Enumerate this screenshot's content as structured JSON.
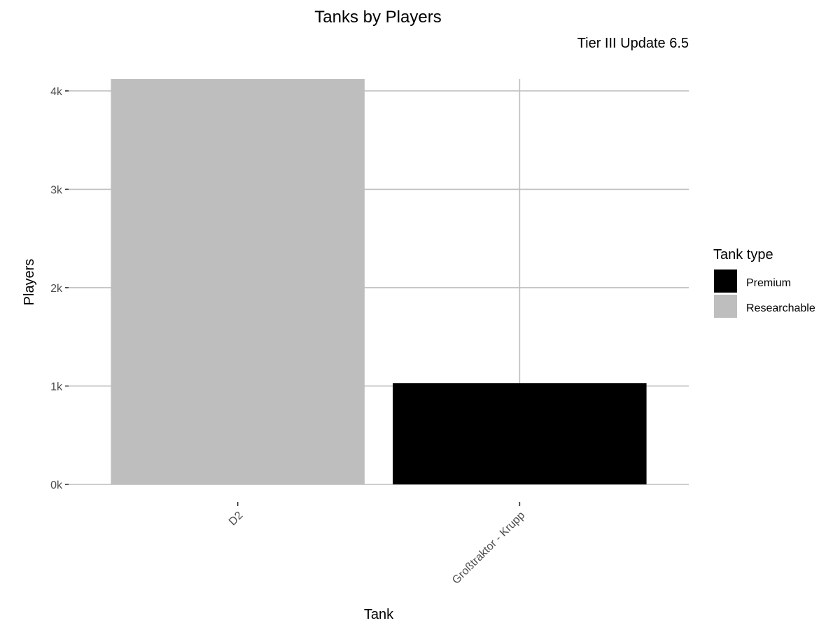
{
  "chart_data": {
    "type": "bar",
    "title": "Tanks by Players",
    "subtitle": "Tier III Update 6.5",
    "xlabel": "Tank",
    "ylabel": "Players",
    "categories": [
      "D2",
      "Großtraktor - Krupp"
    ],
    "values": [
      4120,
      1030
    ],
    "bar_types": [
      "Researchable",
      "Premium"
    ],
    "ylim": [
      0,
      4120
    ],
    "y_ticks": [
      0,
      1000,
      2000,
      3000,
      4000
    ],
    "y_tick_labels": [
      "0k",
      "1k",
      "2k",
      "3k",
      "4k"
    ],
    "grid": true,
    "legend": {
      "title": "Tank type",
      "placement": "right",
      "entries": [
        {
          "label": "Premium",
          "color": "#000000"
        },
        {
          "label": "Researchable",
          "color": "#bebebe"
        }
      ]
    },
    "colors": {
      "Premium": "#000000",
      "Researchable": "#bebebe",
      "grid": "#bebebe",
      "axis_text": "#4d4d4d"
    }
  }
}
